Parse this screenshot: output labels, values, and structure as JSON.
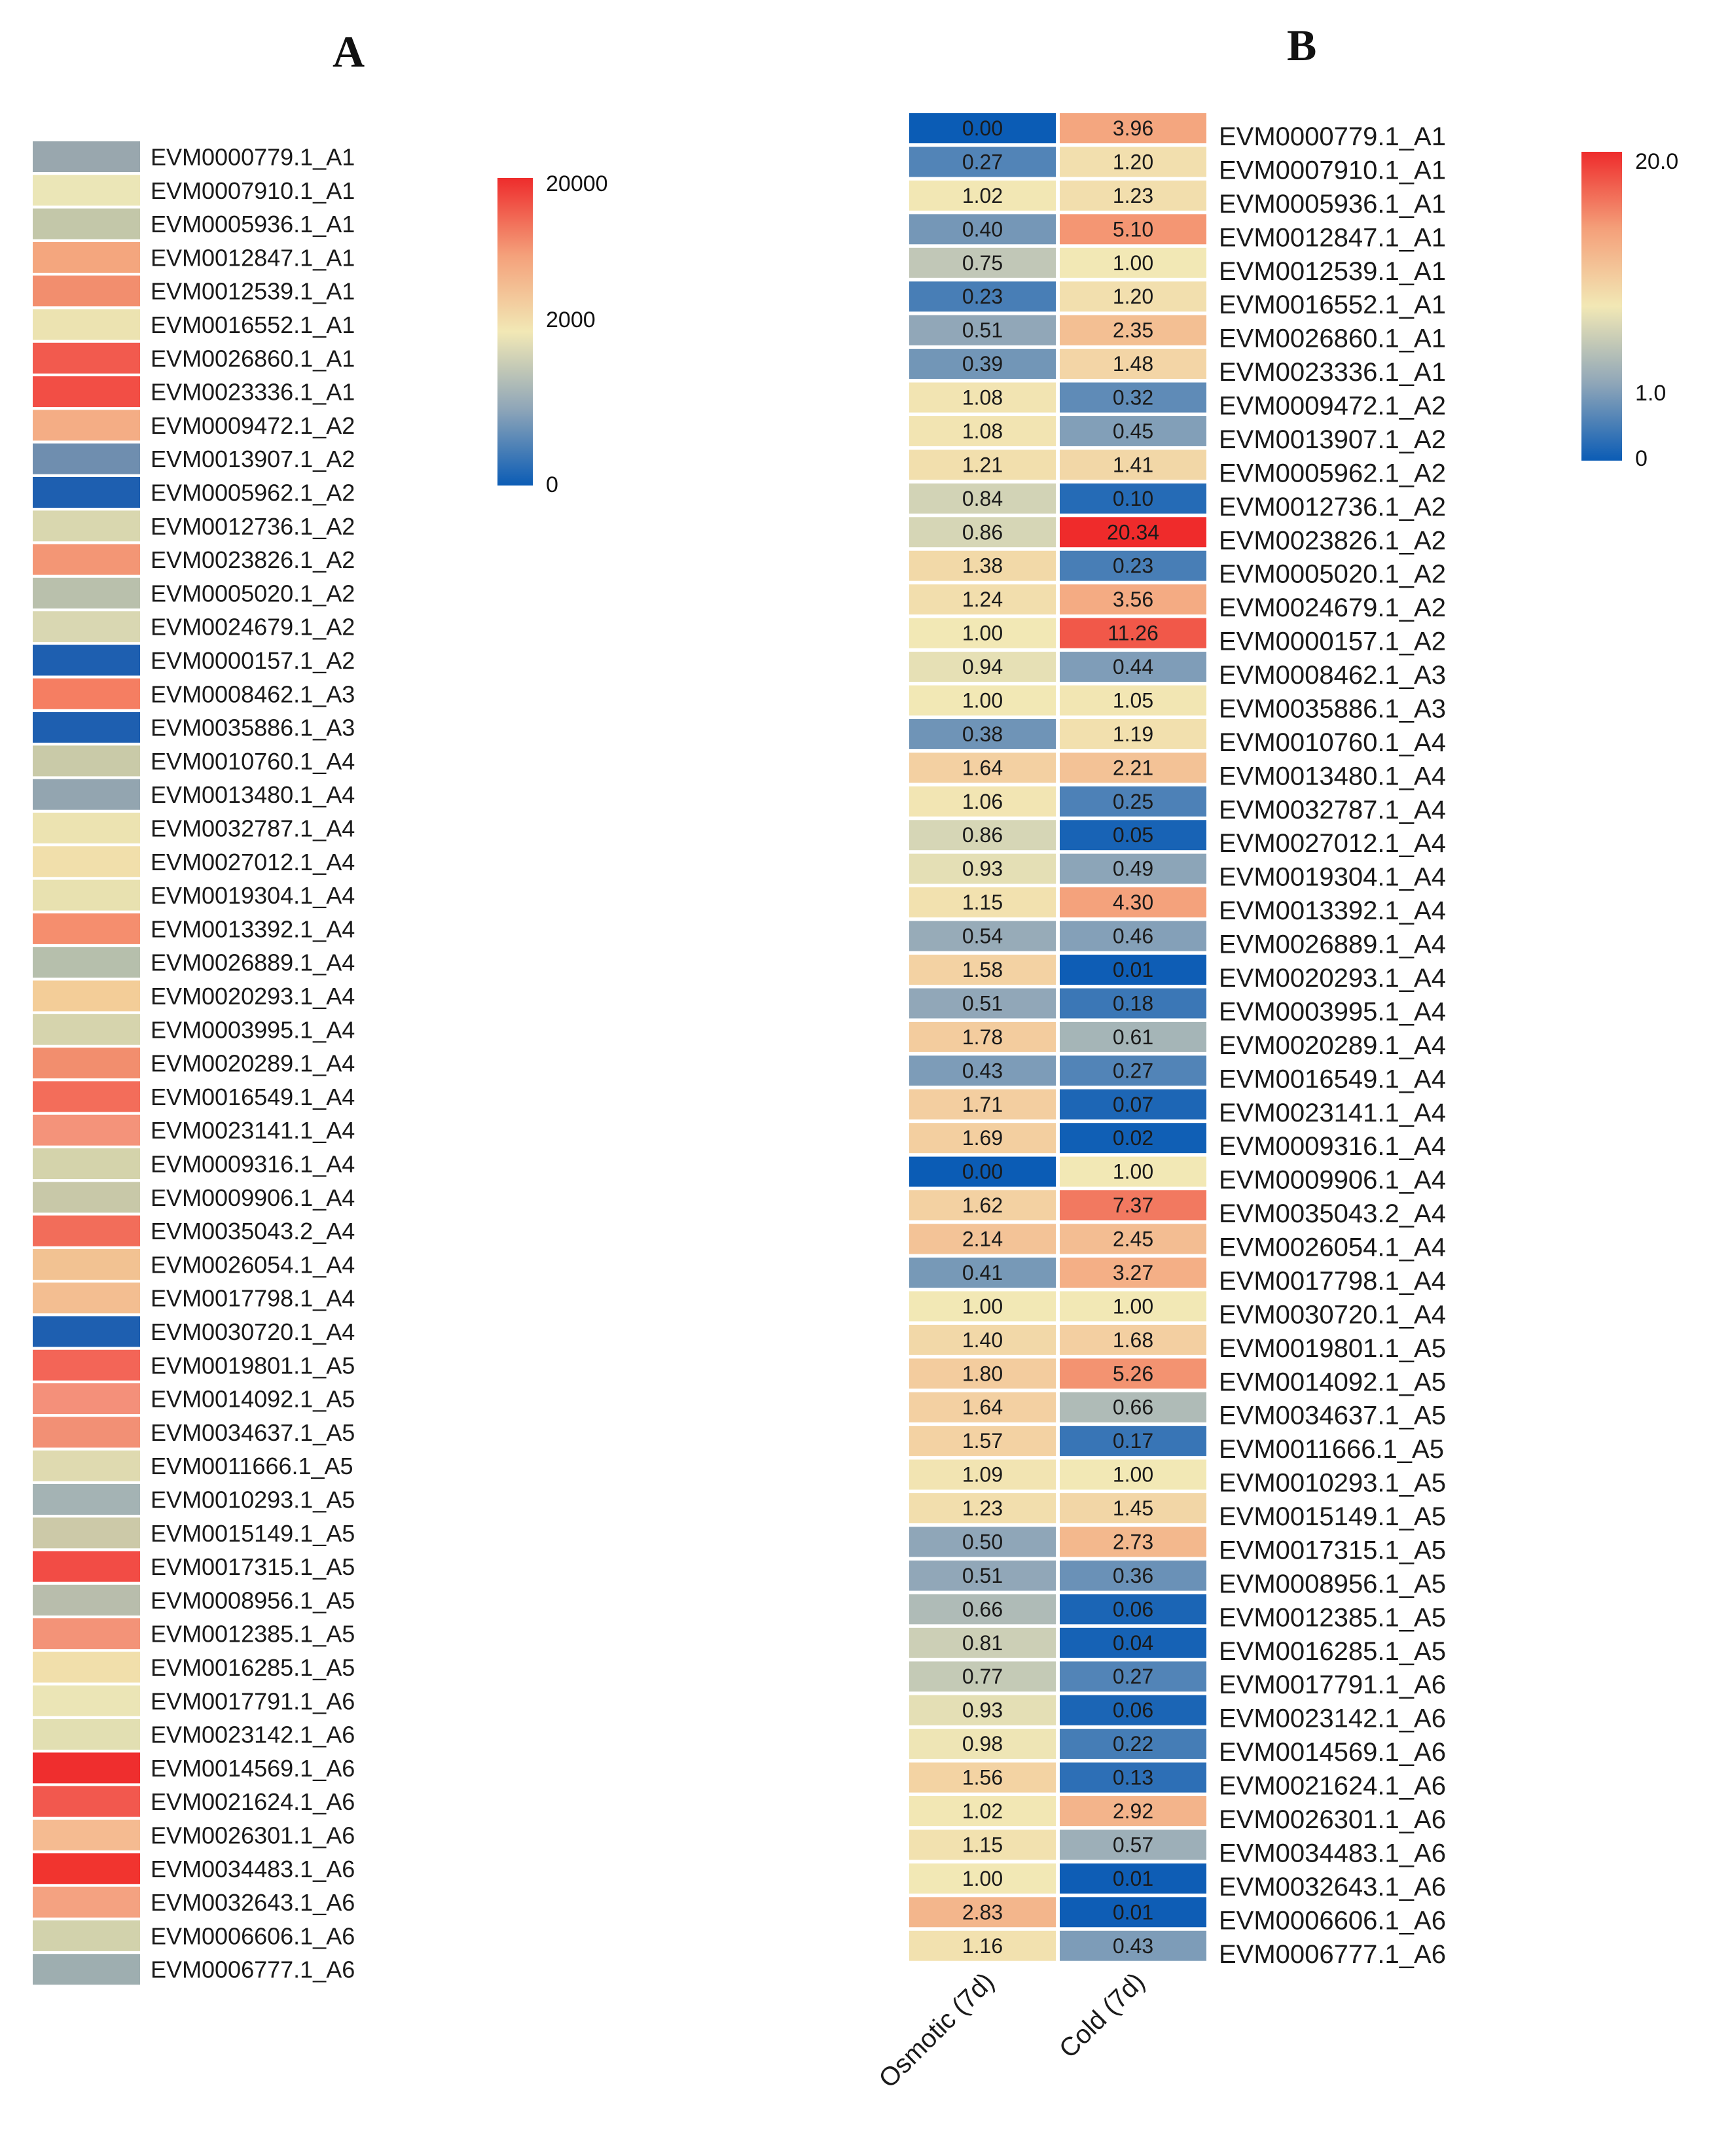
{
  "chart_data": [
    {
      "panel": "A",
      "type": "heatmap",
      "title": "A",
      "colorbar": {
        "ticks": [
          "20000",
          "2000",
          "0"
        ],
        "stops": [
          "#d7191c",
          "#f4a582",
          "#f1e6b2",
          "#a4b6bb",
          "#2166ac"
        ]
      },
      "colors": [
        "#99a7ae",
        "#ebe6b7",
        "#c3c7a9",
        "#f4a67e",
        "#f28e6e",
        "#ece3b1",
        "#f25a4e",
        "#f24e45",
        "#f4ad85",
        "#6f8eaf",
        "#1e5fb0",
        "#d9d7af",
        "#f39675",
        "#b9c0ac",
        "#d9d7b2",
        "#1e5fb0",
        "#f57e62",
        "#1e5fb0",
        "#c9caa8",
        "#93a5b0",
        "#ece3b1",
        "#f1dfab",
        "#e8e1b0",
        "#f58e6e",
        "#b6bfac",
        "#f3cd98",
        "#d6d4ad",
        "#f28e6e",
        "#f36d5a",
        "#f4937a",
        "#d4d3ab",
        "#c8c8a8",
        "#f26d5a",
        "#f2c292",
        "#f3be91",
        "#1e5fb0",
        "#f36557",
        "#f4907a",
        "#f29075",
        "#dfdab0",
        "#a4b3b4",
        "#ccc9a8",
        "#f24c45",
        "#b8bdac",
        "#f39378",
        "#f1dfab",
        "#ebe5b6",
        "#e2dfb2",
        "#ef2e2e",
        "#f2584e",
        "#f5bb91",
        "#f1342f",
        "#f4a281",
        "#d2d2ac",
        "#9eaeb0"
      ],
      "row_labels": [
        "EVM0000779.1_A1",
        "EVM0007910.1_A1",
        "EVM0005936.1_A1",
        "EVM0012847.1_A1",
        "EVM0012539.1_A1",
        "EVM0016552.1_A1",
        "EVM0026860.1_A1",
        "EVM0023336.1_A1",
        "EVM0009472.1_A2",
        "EVM0013907.1_A2",
        "EVM0005962.1_A2",
        "EVM0012736.1_A2",
        "EVM0023826.1_A2",
        "EVM0005020.1_A2",
        "EVM0024679.1_A2",
        "EVM0000157.1_A2",
        "EVM0008462.1_A3",
        "EVM0035886.1_A3",
        "EVM0010760.1_A4",
        "EVM0013480.1_A4",
        "EVM0032787.1_A4",
        "EVM0027012.1_A4",
        "EVM0019304.1_A4",
        "EVM0013392.1_A4",
        "EVM0026889.1_A4",
        "EVM0020293.1_A4",
        "EVM0003995.1_A4",
        "EVM0020289.1_A4",
        "EVM0016549.1_A4",
        "EVM0023141.1_A4",
        "EVM0009316.1_A4",
        "EVM0009906.1_A4",
        "EVM0035043.2_A4",
        "EVM0026054.1_A4",
        "EVM0017798.1_A4",
        "EVM0030720.1_A4",
        "EVM0019801.1_A5",
        "EVM0014092.1_A5",
        "EVM0034637.1_A5",
        "EVM0011666.1_A5",
        "EVM0010293.1_A5",
        "EVM0015149.1_A5",
        "EVM0017315.1_A5",
        "EVM0008956.1_A5",
        "EVM0012385.1_A5",
        "EVM0016285.1_A5",
        "EVM0017791.1_A6",
        "EVM0023142.1_A6",
        "EVM0014569.1_A6",
        "EVM0021624.1_A6",
        "EVM0026301.1_A6",
        "EVM0034483.1_A6",
        "EVM0032643.1_A6",
        "EVM0006606.1_A6",
        "EVM0006777.1_A6"
      ]
    },
    {
      "panel": "B",
      "type": "heatmap",
      "title": "B",
      "colorbar": {
        "ticks": [
          "20.0",
          "1.0",
          "0"
        ],
        "stops": [
          "#d7191c",
          "#f4a582",
          "#f1e6b2",
          "#a4b6bb",
          "#2166ac"
        ]
      },
      "columns": [
        "Osmotic (7d)",
        "Cold (7d)"
      ],
      "row_labels": [
        "EVM0000779.1_A1",
        "EVM0007910.1_A1",
        "EVM0005936.1_A1",
        "EVM0012847.1_A1",
        "EVM0012539.1_A1",
        "EVM0016552.1_A1",
        "EVM0026860.1_A1",
        "EVM0023336.1_A1",
        "EVM0009472.1_A2",
        "EVM0013907.1_A2",
        "EVM0005962.1_A2",
        "EVM0012736.1_A2",
        "EVM0023826.1_A2",
        "EVM0005020.1_A2",
        "EVM0024679.1_A2",
        "EVM0000157.1_A2",
        "EVM0008462.1_A3",
        "EVM0035886.1_A3",
        "EVM0010760.1_A4",
        "EVM0013480.1_A4",
        "EVM0032787.1_A4",
        "EVM0027012.1_A4",
        "EVM0019304.1_A4",
        "EVM0013392.1_A4",
        "EVM0026889.1_A4",
        "EVM0020293.1_A4",
        "EVM0003995.1_A4",
        "EVM0020289.1_A4",
        "EVM0016549.1_A4",
        "EVM0023141.1_A4",
        "EVM0009316.1_A4",
        "EVM0009906.1_A4",
        "EVM0035043.2_A4",
        "EVM0026054.1_A4",
        "EVM0017798.1_A4",
        "EVM0030720.1_A4",
        "EVM0019801.1_A5",
        "EVM0014092.1_A5",
        "EVM0034637.1_A5",
        "EVM0011666.1_A5",
        "EVM0010293.1_A5",
        "EVM0015149.1_A5",
        "EVM0017315.1_A5",
        "EVM0008956.1_A5",
        "EVM0012385.1_A5",
        "EVM0016285.1_A5",
        "EVM0017791.1_A6",
        "EVM0023142.1_A6",
        "EVM0014569.1_A6",
        "EVM0021624.1_A6",
        "EVM0026301.1_A6",
        "EVM0034483.1_A6",
        "EVM0032643.1_A6",
        "EVM0006606.1_A6",
        "EVM0006777.1_A6"
      ],
      "values": [
        [
          "0.00",
          "3.96"
        ],
        [
          "0.27",
          "1.20"
        ],
        [
          "1.02",
          "1.23"
        ],
        [
          "0.40",
          "5.10"
        ],
        [
          "0.75",
          "1.00"
        ],
        [
          "0.23",
          "1.20"
        ],
        [
          "0.51",
          "2.35"
        ],
        [
          "0.39",
          "1.48"
        ],
        [
          "1.08",
          "0.32"
        ],
        [
          "1.08",
          "0.45"
        ],
        [
          "1.21",
          "1.41"
        ],
        [
          "0.84",
          "0.10"
        ],
        [
          "0.86",
          "20.34"
        ],
        [
          "1.38",
          "0.23"
        ],
        [
          "1.24",
          "3.56"
        ],
        [
          "1.00",
          "11.26"
        ],
        [
          "0.94",
          "0.44"
        ],
        [
          "1.00",
          "1.05"
        ],
        [
          "0.38",
          "1.19"
        ],
        [
          "1.64",
          "2.21"
        ],
        [
          "1.06",
          "0.25"
        ],
        [
          "0.86",
          "0.05"
        ],
        [
          "0.93",
          "0.49"
        ],
        [
          "1.15",
          "4.30"
        ],
        [
          "0.54",
          "0.46"
        ],
        [
          "1.58",
          "0.01"
        ],
        [
          "0.51",
          "0.18"
        ],
        [
          "1.78",
          "0.61"
        ],
        [
          "0.43",
          "0.27"
        ],
        [
          "1.71",
          "0.07"
        ],
        [
          "1.69",
          "0.02"
        ],
        [
          "0.00",
          "1.00"
        ],
        [
          "1.62",
          "7.37"
        ],
        [
          "2.14",
          "2.45"
        ],
        [
          "0.41",
          "3.27"
        ],
        [
          "1.00",
          "1.00"
        ],
        [
          "1.40",
          "1.68"
        ],
        [
          "1.80",
          "5.26"
        ],
        [
          "1.64",
          "0.66"
        ],
        [
          "1.57",
          "0.17"
        ],
        [
          "1.09",
          "1.00"
        ],
        [
          "1.23",
          "1.45"
        ],
        [
          "0.50",
          "2.73"
        ],
        [
          "0.51",
          "0.36"
        ],
        [
          "0.66",
          "0.06"
        ],
        [
          "0.81",
          "0.04"
        ],
        [
          "0.77",
          "0.27"
        ],
        [
          "0.93",
          "0.06"
        ],
        [
          "0.98",
          "0.22"
        ],
        [
          "1.56",
          "0.13"
        ],
        [
          "1.02",
          "2.92"
        ],
        [
          "1.15",
          "0.57"
        ],
        [
          "1.00",
          "0.01"
        ],
        [
          "2.83",
          "0.01"
        ],
        [
          "1.16",
          "0.43"
        ]
      ]
    }
  ]
}
